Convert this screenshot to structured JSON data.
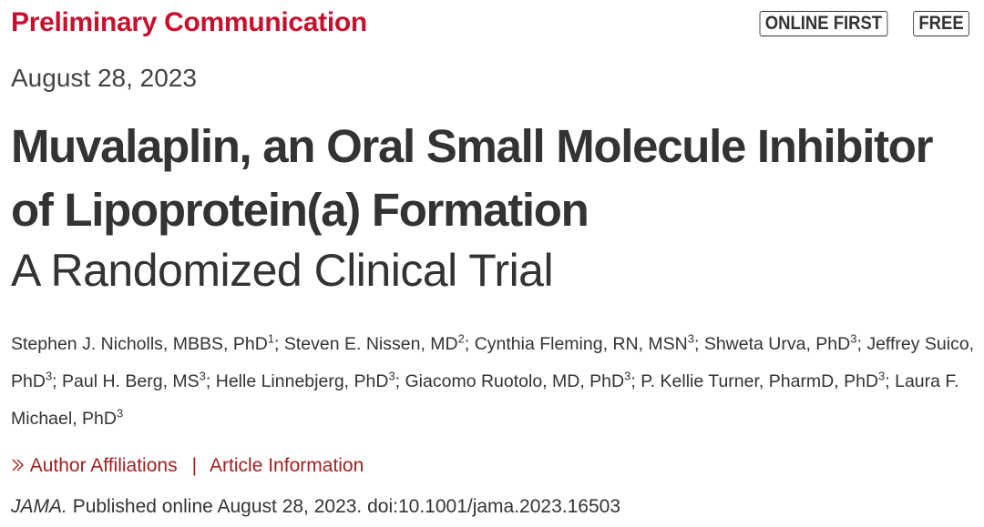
{
  "header": {
    "article_type": "Preliminary Communication",
    "badges": [
      "ONLINE FIRST",
      "FREE"
    ]
  },
  "date": "August 28, 2023",
  "title": "Muvalaplin, an Oral Small Molecule Inhibitor of Lipoprotein(a) Formation",
  "subtitle": "A Randomized Clinical Trial",
  "author_separator": ";",
  "authors": [
    {
      "name": "Stephen J. Nicholls, MBBS, PhD",
      "affiliation": "1"
    },
    {
      "name": "Steven E. Nissen, MD",
      "affiliation": "2"
    },
    {
      "name": "Cynthia Fleming, RN, MSN",
      "affiliation": "3"
    },
    {
      "name": "Shweta Urva, PhD",
      "affiliation": "3"
    },
    {
      "name": "Jeffrey Suico, PhD",
      "affiliation": "3"
    },
    {
      "name": "Paul H. Berg, MS",
      "affiliation": "3"
    },
    {
      "name": "Helle Linnebjerg, PhD",
      "affiliation": "3"
    },
    {
      "name": "Giacomo Ruotolo, MD, PhD",
      "affiliation": "3"
    },
    {
      "name": "P. Kellie Turner, PharmD, PhD",
      "affiliation": "3"
    },
    {
      "name": "Laura F. Michael, PhD",
      "affiliation": "3"
    }
  ],
  "links": {
    "affiliations": "Author Affiliations",
    "separator": "|",
    "information": "Article Information"
  },
  "citation": {
    "journal": "JAMA.",
    "text": "Published online August 28, 2023. doi:10.1001/jama.2023.16503"
  }
}
